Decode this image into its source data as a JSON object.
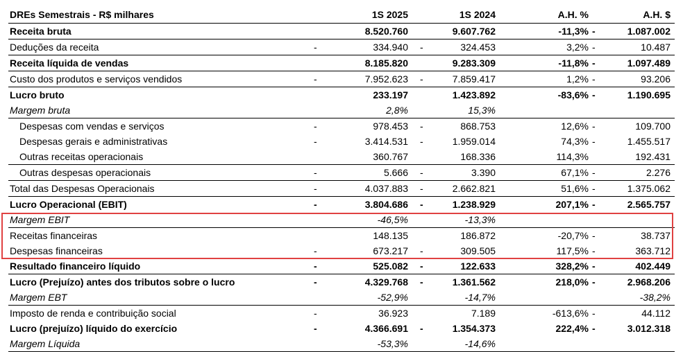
{
  "table": {
    "title": "DREs Semestrais - R$ milhares",
    "columns": [
      "1S 2025",
      "1S 2024",
      "A.H. %",
      "A.H. $"
    ],
    "rows": [
      {
        "label": "Receita bruta",
        "style": "b bl",
        "d1": "",
        "v1": "8.520.760",
        "d2": "",
        "v2": "9.607.762",
        "d3": "",
        "v3": "-11,3%",
        "d4": "-",
        "v4": "1.087.002"
      },
      {
        "label": "Deduções da receita",
        "style": "bl",
        "d1": "-",
        "v1": "334.940",
        "d2": "-",
        "v2": "324.453",
        "d3": "",
        "v3": "3,2%",
        "d4": "-",
        "v4": "10.487"
      },
      {
        "label": "Receita líquida de vendas",
        "style": "b bl",
        "d1": "",
        "v1": "8.185.820",
        "d2": "",
        "v2": "9.283.309",
        "d3": "",
        "v3": "-11,8%",
        "d4": "-",
        "v4": "1.097.489"
      },
      {
        "label": "Custo dos produtos e serviços vendidos",
        "style": "bl",
        "d1": "-",
        "v1": "7.952.623",
        "d2": "-",
        "v2": "7.859.417",
        "d3": "",
        "v3": "1,2%",
        "d4": "-",
        "v4": "93.206"
      },
      {
        "label": "Lucro bruto",
        "style": "b",
        "d1": "",
        "v1": "233.197",
        "d2": "",
        "v2": "1.423.892",
        "d3": "",
        "v3": "-83,6%",
        "d4": "-",
        "v4": "1.190.695"
      },
      {
        "label": "Margem bruta",
        "style": "i bl",
        "d1": "",
        "v1": "2,8%",
        "d2": "",
        "v2": "15,3%",
        "d3": "",
        "v3": "",
        "d4": "",
        "v4": ""
      },
      {
        "label": "Despesas com vendas e serviços",
        "style": "ind",
        "d1": "-",
        "v1": "978.453",
        "d2": "-",
        "v2": "868.753",
        "d3": "",
        "v3": "12,6%",
        "d4": "-",
        "v4": "109.700"
      },
      {
        "label": "Despesas gerais e administrativas",
        "style": "ind",
        "d1": "-",
        "v1": "3.414.531",
        "d2": "-",
        "v2": "1.959.014",
        "d3": "",
        "v3": "74,3%",
        "d4": "-",
        "v4": "1.455.517"
      },
      {
        "label": "Outras receitas operacionais",
        "style": "ind bl",
        "d1": "",
        "v1": "360.767",
        "d2": "",
        "v2": "168.336",
        "d3": "",
        "v3": "114,3%",
        "d4": "",
        "v4": "192.431"
      },
      {
        "label": "Outras despesas operacionais",
        "style": "ind bl",
        "d1": "-",
        "v1": "5.666",
        "d2": "-",
        "v2": "3.390",
        "d3": "",
        "v3": "67,1%",
        "d4": "-",
        "v4": "2.276"
      },
      {
        "label": "Total das Despesas Operacionais",
        "style": "bl",
        "d1": "-",
        "v1": "4.037.883",
        "d2": "-",
        "v2": "2.662.821",
        "d3": "",
        "v3": "51,6%",
        "d4": "-",
        "v4": "1.375.062"
      },
      {
        "label": "Lucro Operacional (EBIT)",
        "style": "b",
        "d1": "-",
        "v1": "3.804.686",
        "d2": "-",
        "v2": "1.238.929",
        "d3": "",
        "v3": "207,1%",
        "d4": "-",
        "v4": "2.565.757"
      },
      {
        "label": "Margem EBIT",
        "style": "i bl",
        "d1": "",
        "v1": "-46,5%",
        "d2": "",
        "v2": "-13,3%",
        "d3": "",
        "v3": "",
        "d4": "",
        "v4": ""
      },
      {
        "label": "Receitas financeiras",
        "style": "",
        "d1": "",
        "v1": "148.135",
        "d2": "",
        "v2": "186.872",
        "d3": "",
        "v3": "-20,7%",
        "d4": "-",
        "v4": "38.737"
      },
      {
        "label": "Despesas financeiras",
        "style": "",
        "d1": "-",
        "v1": "673.217",
        "d2": "-",
        "v2": "309.505",
        "d3": "",
        "v3": "117,5%",
        "d4": "-",
        "v4": "363.712"
      },
      {
        "label": "Resultado financeiro líquido",
        "style": "b bl",
        "d1": "-",
        "v1": "525.082",
        "d2": "-",
        "v2": "122.633",
        "d3": "",
        "v3": "328,2%",
        "d4": "-",
        "v4": "402.449"
      },
      {
        "label": "Lucro (Prejuízo) antes dos tributos sobre o lucro",
        "style": "b",
        "d1": "-",
        "v1": "4.329.768",
        "d2": "-",
        "v2": "1.361.562",
        "d3": "",
        "v3": "218,0%",
        "d4": "-",
        "v4": "2.968.206"
      },
      {
        "label": "Margem EBT",
        "style": "i bl",
        "d1": "",
        "v1": "-52,9%",
        "d2": "",
        "v2": "-14,7%",
        "d3": "",
        "v3": "",
        "d4": "",
        "v4": "-38,2%"
      },
      {
        "label": "Imposto de renda e contribuição social",
        "style": "",
        "d1": "-",
        "v1": "36.923",
        "d2": "",
        "v2": "7.189",
        "d3": "",
        "v3": "-613,6%",
        "d4": "-",
        "v4": "44.112"
      },
      {
        "label": "Lucro (prejuízo) líquido do exercício",
        "style": "b",
        "d1": "-",
        "v1": "4.366.691",
        "d2": "-",
        "v2": "1.354.373",
        "d3": "",
        "v3": "222,4%",
        "d4": "-",
        "v4": "3.012.318"
      },
      {
        "label": "Margem Líquida",
        "style": "i bl",
        "d1": "",
        "v1": "-53,3%",
        "d2": "",
        "v2": "-14,6%",
        "d3": "",
        "v3": "",
        "d4": "",
        "v4": ""
      }
    ]
  },
  "highlight": {
    "color": "#e04141"
  }
}
